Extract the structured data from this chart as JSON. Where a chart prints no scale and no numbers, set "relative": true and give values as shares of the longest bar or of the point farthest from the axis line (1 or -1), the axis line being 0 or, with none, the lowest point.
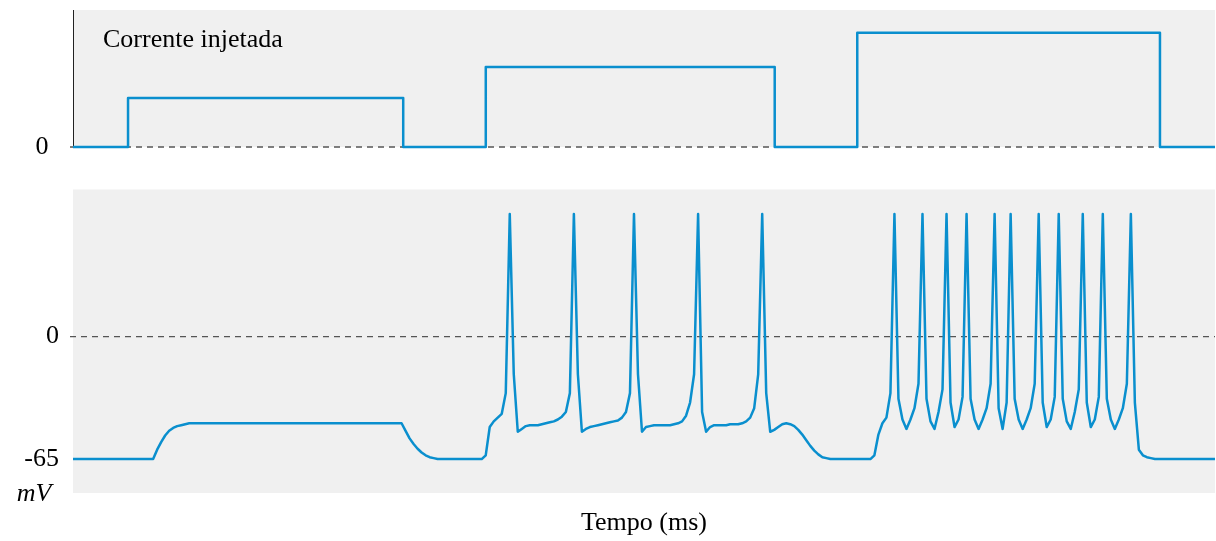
{
  "chart_data": [
    {
      "type": "step",
      "relative": true,
      "color": "#0a8fce",
      "annotations": [
        "Corrente injetada"
      ],
      "ref_lines": [
        {
          "axis": "y",
          "value": 0,
          "label": "0",
          "color": "#555555",
          "line_style": "dashed"
        }
      ],
      "categories": [
        null,
        null,
        null,
        null,
        null,
        null,
        null,
        null,
        null,
        null,
        null,
        null,
        null,
        null,
        null,
        null,
        null,
        null,
        null,
        null,
        null,
        null,
        null,
        null,
        null,
        null,
        null,
        null,
        null,
        null,
        null,
        null,
        null,
        null,
        null,
        null,
        null,
        null,
        null,
        null,
        null,
        null,
        null,
        null,
        null,
        null,
        null,
        null,
        null,
        null,
        null,
        null,
        null,
        null,
        null,
        null,
        null,
        null,
        null,
        null,
        null,
        null,
        null,
        null,
        null,
        null,
        null,
        null,
        null,
        null,
        null,
        null,
        null,
        null,
        null,
        null,
        null,
        null,
        null,
        null,
        null,
        null,
        null,
        null
      ],
      "values": [
        0,
        0,
        0,
        0,
        0,
        0.43,
        0.43,
        0.43,
        0.43,
        0.43,
        0.43,
        0.43,
        0.43,
        0.43,
        0.43,
        0.43,
        0.43,
        0.43,
        0.43,
        0.43,
        0.43,
        0.43,
        0.43,
        0.43,
        0.43,
        0,
        0,
        0,
        0,
        0,
        0,
        0.7,
        0.7,
        0.7,
        0.7,
        0.7,
        0.7,
        0.7,
        0.7,
        0.7,
        0.7,
        0.7,
        0.7,
        0.7,
        0.7,
        0.7,
        0.7,
        0.7,
        0.7,
        0.7,
        0.7,
        0.7,
        0,
        0,
        0,
        0,
        0,
        0,
        1,
        1,
        1,
        1,
        1,
        1,
        1,
        1,
        1,
        1,
        1,
        1,
        1,
        1,
        1,
        1,
        1,
        1,
        1,
        1,
        1,
        1,
        0,
        0,
        0,
        0
      ]
    },
    {
      "type": "line",
      "color": "#0a8fce",
      "ylim": [
        -83,
        78
      ],
      "yticks": [
        -65,
        0
      ],
      "ylabel": "mV",
      "xlabel": "Tempo (ms)",
      "ref_lines": [
        {
          "axis": "y",
          "value": 0,
          "color": "#555555",
          "line_style": "dashed"
        }
      ],
      "categories": [
        null,
        null,
        null,
        null,
        null,
        null,
        null,
        null,
        null,
        null,
        null,
        null,
        null,
        null,
        null,
        null,
        null,
        null,
        null,
        null,
        null,
        null,
        null,
        null,
        null,
        null,
        null,
        null,
        null,
        null,
        null,
        null,
        null,
        null,
        null,
        null,
        null,
        null,
        null,
        null,
        null,
        null,
        null,
        null,
        null,
        null,
        null,
        null,
        null,
        null,
        null,
        null,
        null,
        null,
        null,
        null,
        null,
        null,
        null,
        null,
        null,
        null,
        null,
        null,
        null,
        null,
        null,
        null,
        null,
        null,
        null,
        null,
        null,
        null,
        null,
        null,
        null,
        null,
        null,
        null,
        null,
        null,
        null,
        null,
        null,
        null,
        null,
        null,
        null,
        null,
        null,
        null,
        null,
        null,
        null,
        null,
        null,
        null,
        null,
        null,
        null,
        null,
        null,
        null,
        null,
        null,
        null,
        null,
        null,
        null,
        null,
        null,
        null,
        null,
        null,
        null,
        null,
        null,
        null,
        null,
        null,
        null,
        null,
        null,
        null,
        null,
        null,
        null,
        null,
        null,
        null,
        null,
        null,
        null,
        null,
        null,
        null,
        null,
        null,
        null,
        null,
        null,
        null,
        null,
        null,
        null,
        null,
        null,
        null,
        null,
        null,
        null,
        null,
        null,
        null,
        null,
        null,
        null,
        null,
        null,
        null,
        null,
        null,
        null,
        null,
        null,
        null,
        null,
        null,
        null,
        null,
        null,
        null,
        null,
        null,
        null,
        null,
        null,
        null,
        null,
        null,
        null,
        null,
        null,
        null,
        null,
        null,
        null,
        null,
        null,
        null,
        null,
        null,
        null,
        null,
        null,
        null,
        null,
        null,
        null,
        null,
        null,
        null,
        null,
        null,
        null,
        null,
        null,
        null,
        null,
        null,
        null,
        null,
        null,
        null,
        null,
        null,
        null,
        null,
        null,
        null,
        null,
        null,
        null,
        null,
        null,
        null,
        null,
        null,
        null,
        null,
        null,
        null,
        null,
        null,
        null,
        null,
        null,
        null,
        null,
        null,
        null,
        null,
        null,
        null,
        null,
        null,
        null,
        null,
        null,
        null,
        null,
        null,
        null,
        null,
        null,
        null,
        null,
        null,
        null,
        null,
        null,
        null,
        null,
        null,
        null,
        null,
        null,
        null,
        null,
        null,
        null,
        null,
        null,
        null,
        null,
        null,
        null,
        null,
        null,
        null,
        null,
        null,
        null,
        null,
        null
      ],
      "values": [
        -65,
        -65,
        -65,
        -65,
        -65,
        -65,
        -65,
        -65,
        -65,
        -65,
        -65,
        -65,
        -65,
        -65,
        -65,
        -65,
        -65,
        -65,
        -65,
        -65,
        -65,
        -60,
        -56,
        -52.5,
        -50,
        -48.5,
        -47.5,
        -47,
        -46.5,
        -46,
        -46,
        -46,
        -46,
        -46,
        -46,
        -46,
        -46,
        -46,
        -46,
        -46,
        -46,
        -46,
        -46,
        -46,
        -46,
        -46,
        -46,
        -46,
        -46,
        -46,
        -46,
        -46,
        -46,
        -46,
        -46,
        -46,
        -46,
        -46,
        -46,
        -46,
        -46,
        -46,
        -46,
        -46,
        -46,
        -46,
        -46,
        -46,
        -46,
        -46,
        -46,
        -46,
        -46,
        -46,
        -46,
        -46,
        -46,
        -46,
        -46,
        -46,
        -46,
        -46,
        -46,
        -50,
        -54,
        -57,
        -59.5,
        -61.5,
        -63,
        -64,
        -64.5,
        -65,
        -65,
        -65,
        -65,
        -65,
        -65,
        -65,
        -65,
        -65,
        -65,
        -65,
        -65,
        -63,
        -48,
        -45,
        -43,
        -41,
        -30,
        65,
        -20,
        -50.5,
        -49,
        -47.5,
        -47,
        -47,
        -47,
        -46.5,
        -46,
        -45.5,
        -45,
        -44,
        -42.5,
        -40,
        -30,
        65,
        -20,
        -50.5,
        -49,
        -48,
        -47.5,
        -47,
        -46.5,
        -46,
        -45.5,
        -45,
        -44.5,
        -43,
        -40,
        -30,
        65,
        -20,
        -50.5,
        -48,
        -47.5,
        -47,
        -47,
        -47,
        -47,
        -47,
        -46.5,
        -46,
        -45,
        -42,
        -35,
        -20,
        65,
        -40,
        -50.5,
        -48,
        -47,
        -47,
        -47,
        -47,
        -46.5,
        -46.5,
        -46.5,
        -46,
        -45,
        -43,
        -38,
        -20,
        65,
        -30,
        -50.5,
        -49.5,
        -48,
        -46.5,
        -46,
        -46.5,
        -47.5,
        -49.5,
        -52,
        -55,
        -58,
        -60.5,
        -62.5,
        -64,
        -64.5,
        -65,
        -65,
        -65,
        -65,
        -65,
        -65,
        -65,
        -65,
        -65,
        -65,
        -65,
        -63,
        -52,
        -46,
        -43,
        -30,
        65,
        -33,
        -44,
        -49,
        -44,
        -38,
        -25,
        65,
        -33,
        -45,
        -49,
        -40,
        -28,
        65,
        -35,
        -48,
        -44,
        -32,
        65,
        -33,
        -44,
        -49,
        -44,
        -38,
        -25,
        65,
        -38,
        -49,
        -35,
        65,
        -33,
        -44,
        -49,
        -44,
        -38,
        -25,
        65,
        -35,
        -48,
        -44,
        -32,
        65,
        -33,
        -45,
        -49,
        -40,
        -28,
        65,
        -35,
        -48,
        -44,
        -32,
        65,
        -33,
        -44,
        -49,
        -44,
        -38,
        -25,
        65,
        -35,
        -60,
        -63,
        -64,
        -64.5,
        -65,
        -65,
        -65,
        -65,
        -65,
        -65,
        -65,
        -65,
        -65,
        -65,
        -65,
        -65,
        -65,
        -65,
        -65,
        -65
      ]
    }
  ]
}
